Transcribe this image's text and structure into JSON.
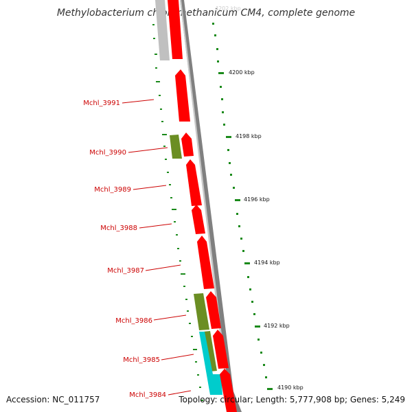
{
  "header": {
    "title": "Methylobacterium chloromethanicum CM4, complete genome"
  },
  "footer": {
    "accession": "Accession: NC_011757",
    "summary": "Topology: circular; Length: 5,777,908 bp; Genes: 5,249"
  },
  "scale_labels": [
    "4200 kbp",
    "4198 kbp",
    "4196 kbp",
    "4194 kbp",
    "4192 kbp",
    "4190 kbp"
  ],
  "gene_labels": [
    "Mchl_3991",
    "Mchl_3990",
    "Mchl_3989",
    "Mchl_3988",
    "Mchl_3987",
    "Mchl_3986",
    "Mchl_3985",
    "Mchl_3984"
  ],
  "colors": {
    "gene_forward": "#ff0000",
    "gene_other": "#6b8e23",
    "gene_cyan": "#00cccc",
    "gene_grey": "#c0c0c0",
    "backbone": "#808080",
    "ticks": "#1a8a1a",
    "label": "#cc0000"
  }
}
